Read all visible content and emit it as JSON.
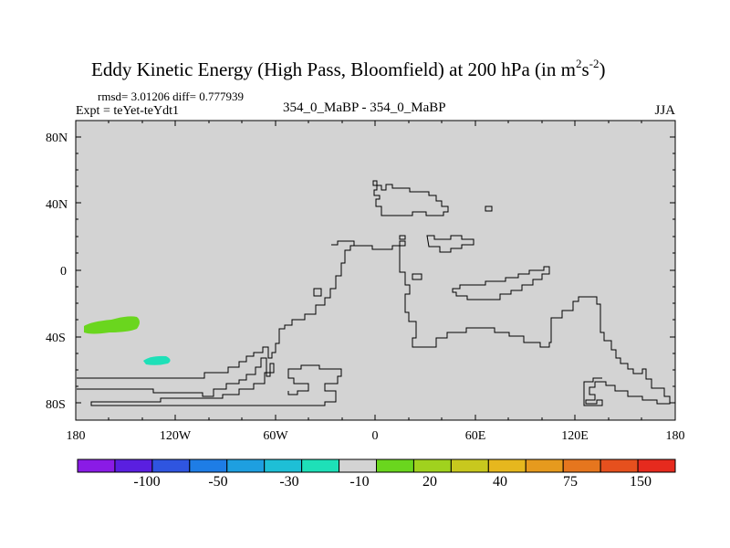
{
  "chart_data": {
    "type": "heatmap",
    "title_main": "Eddy Kinetic Energy (High Pass, Bloomfield) at 200 hPa (in m",
    "title_sup1": "2",
    "title_s": "s",
    "title_sup2": "-2",
    "title_close": ")",
    "rmsd_line": "rmsd= 3.01206 diff= 0.777939",
    "expt_line": "Expt = teYet-teYdt1",
    "center_label": "354_0_MaBP - 354_0_MaBP",
    "season": "JJA",
    "x_axis": {
      "range": [
        -180,
        180
      ],
      "tick_values": [
        -180,
        -120,
        -60,
        0,
        60,
        120,
        180
      ],
      "tick_labels": [
        "180",
        "120W",
        "60W",
        "0",
        "60E",
        "120E",
        "180"
      ]
    },
    "y_axis": {
      "range": [
        -90,
        90
      ],
      "tick_values": [
        80,
        40,
        0,
        -40,
        -80
      ],
      "tick_labels": [
        "80N",
        "40N",
        "0",
        "40S",
        "80S"
      ]
    },
    "colorbar": {
      "colors": [
        "#8a1be6",
        "#5a1fe0",
        "#2f55e0",
        "#1e7de6",
        "#1e9fe0",
        "#1ebfd6",
        "#1ee0b8",
        "#d3d3d3",
        "#6ad61e",
        "#a0d21e",
        "#c8c81e",
        "#e6b71e",
        "#e69a1e",
        "#e6761e",
        "#e6501e",
        "#e62a1e"
      ],
      "tick_labels": [
        "-100",
        "-50",
        "-30",
        "-10",
        "20",
        "40",
        "75",
        "150"
      ]
    },
    "field_background": "#d3d3d3",
    "anomalies": [
      {
        "name": "positive-anomaly-patch",
        "color": "#6ad61e",
        "approx_lon": -150,
        "approx_lat": -33,
        "category": "10 to 20"
      },
      {
        "name": "negative-anomaly-patch",
        "color": "#1ee0b8",
        "approx_lon": -135,
        "approx_lat": -53,
        "category": "-20 to -10"
      }
    ]
  }
}
